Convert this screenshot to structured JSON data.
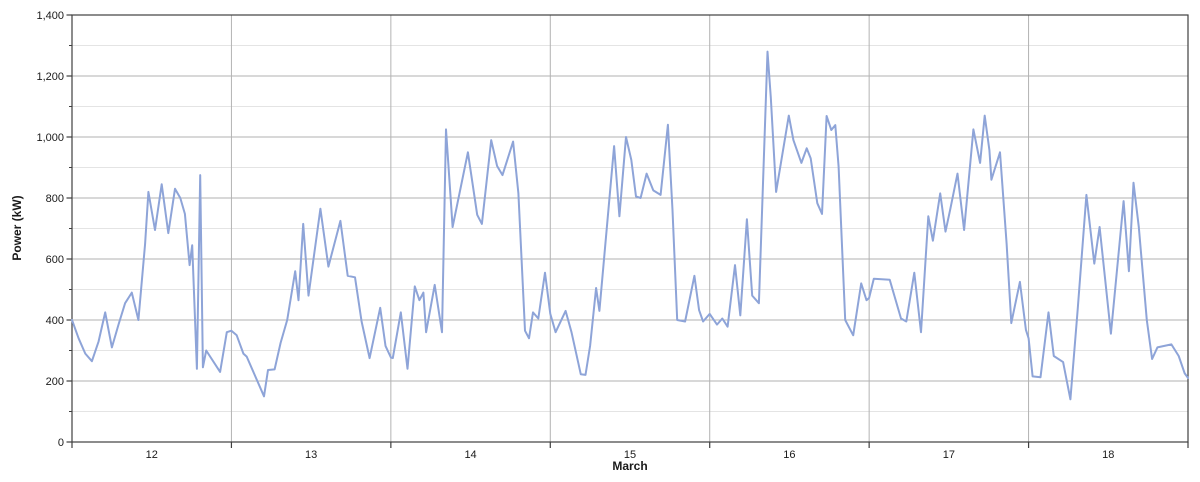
{
  "chart_data": {
    "type": "line",
    "xlabel": "March",
    "ylabel": "Power (kW)",
    "x_axis": {
      "description": "days of March, boundaries ticked at each midnight",
      "range_hours": [
        0,
        168
      ],
      "day_boundary_step_hours": 24,
      "tick_labels": [
        "12",
        "13",
        "14",
        "15",
        "16",
        "17",
        "18"
      ]
    },
    "y_axis": {
      "lim": [
        0,
        1400
      ],
      "major_step": 200,
      "minor_step": 100,
      "tick_values": [
        0,
        200,
        400,
        600,
        800,
        1000,
        1200,
        1400
      ],
      "tick_labels": [
        "0",
        "200",
        "400",
        "600",
        "800",
        "1,000",
        "1,200",
        "1,400"
      ]
    },
    "grid": {
      "major": true,
      "minor_horizontal": true,
      "vertical_day_lines": true
    },
    "series": [
      {
        "name": "Power (kW)",
        "color": "#8EA4D8",
        "points_hours_kw": [
          [
            0,
            400
          ],
          [
            1,
            340
          ],
          [
            2,
            290
          ],
          [
            3,
            265
          ],
          [
            4,
            330
          ],
          [
            5,
            425
          ],
          [
            6,
            310
          ],
          [
            7,
            385
          ],
          [
            8,
            455
          ],
          [
            9,
            490
          ],
          [
            10,
            400
          ],
          [
            11,
            650
          ],
          [
            11.5,
            820
          ],
          [
            12.5,
            695
          ],
          [
            13.5,
            845
          ],
          [
            14.5,
            685
          ],
          [
            15.5,
            830
          ],
          [
            16.3,
            800
          ],
          [
            17,
            748
          ],
          [
            17.7,
            580
          ],
          [
            18.1,
            645
          ],
          [
            18.8,
            240
          ],
          [
            19.3,
            875
          ],
          [
            19.7,
            245
          ],
          [
            20.2,
            300
          ],
          [
            22.3,
            230
          ],
          [
            23.3,
            360
          ],
          [
            24,
            365
          ],
          [
            24.8,
            350
          ],
          [
            25.8,
            290
          ],
          [
            26.3,
            280
          ],
          [
            28.9,
            150
          ],
          [
            29.5,
            236
          ],
          [
            30.5,
            238
          ],
          [
            31.4,
            325
          ],
          [
            32.4,
            400
          ],
          [
            33.6,
            560
          ],
          [
            34.1,
            465
          ],
          [
            34.8,
            715
          ],
          [
            35.6,
            480
          ],
          [
            37.4,
            765
          ],
          [
            38.6,
            575
          ],
          [
            40.4,
            725
          ],
          [
            41.5,
            545
          ],
          [
            42.6,
            540
          ],
          [
            43.6,
            395
          ],
          [
            44.8,
            275
          ],
          [
            46.4,
            440
          ],
          [
            47.2,
            315
          ],
          [
            48,
            277
          ],
          [
            48.3,
            275
          ],
          [
            49.5,
            425
          ],
          [
            50.5,
            240
          ],
          [
            51.6,
            510
          ],
          [
            52.3,
            465
          ],
          [
            52.9,
            490
          ],
          [
            53.3,
            360
          ],
          [
            54.6,
            515
          ],
          [
            55.7,
            360
          ],
          [
            56.3,
            1025
          ],
          [
            57.3,
            705
          ],
          [
            59.6,
            950
          ],
          [
            61,
            745
          ],
          [
            61.7,
            715
          ],
          [
            63.1,
            990
          ],
          [
            64,
            905
          ],
          [
            64.8,
            875
          ],
          [
            66.4,
            985
          ],
          [
            67.2,
            815
          ],
          [
            68.2,
            365
          ],
          [
            68.8,
            340
          ],
          [
            69.4,
            425
          ],
          [
            70.2,
            405
          ],
          [
            71.2,
            555
          ],
          [
            72,
            420
          ],
          [
            72.8,
            360
          ],
          [
            74.3,
            430
          ],
          [
            75.2,
            360
          ],
          [
            76.6,
            222
          ],
          [
            77.3,
            220
          ],
          [
            78,
            315
          ],
          [
            78.9,
            505
          ],
          [
            79.4,
            430
          ],
          [
            81.6,
            970
          ],
          [
            82.4,
            740
          ],
          [
            83.4,
            1000
          ],
          [
            84.2,
            925
          ],
          [
            84.9,
            805
          ],
          [
            85.6,
            800
          ],
          [
            86.5,
            880
          ],
          [
            87.5,
            825
          ],
          [
            88.6,
            810
          ],
          [
            89.7,
            1040
          ],
          [
            90.4,
            760
          ],
          [
            91.1,
            400
          ],
          [
            92.3,
            395
          ],
          [
            93.7,
            545
          ],
          [
            94.4,
            432
          ],
          [
            95,
            395
          ],
          [
            96,
            420
          ],
          [
            97.1,
            385
          ],
          [
            97.9,
            405
          ],
          [
            98.7,
            378
          ],
          [
            99.8,
            580
          ],
          [
            100.6,
            415
          ],
          [
            101.6,
            730
          ],
          [
            102.4,
            480
          ],
          [
            103.4,
            455
          ],
          [
            104.7,
            1280
          ],
          [
            105.2,
            1130
          ],
          [
            106,
            820
          ],
          [
            107.9,
            1070
          ],
          [
            108.6,
            990
          ],
          [
            109.8,
            915
          ],
          [
            110.6,
            963
          ],
          [
            111.2,
            930
          ],
          [
            112.2,
            783
          ],
          [
            112.9,
            748
          ],
          [
            113.6,
            1069
          ],
          [
            114.3,
            1023
          ],
          [
            114.9,
            1039
          ],
          [
            115.4,
            903
          ],
          [
            116.4,
            400
          ],
          [
            117.6,
            350
          ],
          [
            118.8,
            520
          ],
          [
            119.6,
            465
          ],
          [
            120,
            472
          ],
          [
            120.7,
            535
          ],
          [
            123.1,
            532
          ],
          [
            124.8,
            405
          ],
          [
            125.6,
            395
          ],
          [
            126.8,
            555
          ],
          [
            127.8,
            360
          ],
          [
            128.9,
            740
          ],
          [
            129.6,
            660
          ],
          [
            130.7,
            815
          ],
          [
            131.5,
            690
          ],
          [
            132.2,
            762
          ],
          [
            133.3,
            880
          ],
          [
            134.3,
            695
          ],
          [
            135.7,
            1025
          ],
          [
            136.7,
            915
          ],
          [
            137.4,
            1070
          ],
          [
            138.1,
            957
          ],
          [
            138.4,
            860
          ],
          [
            139.7,
            950
          ],
          [
            140.7,
            651
          ],
          [
            141.4,
            390
          ],
          [
            142.7,
            525
          ],
          [
            143.6,
            368
          ],
          [
            144,
            340
          ],
          [
            144.6,
            215
          ],
          [
            145.8,
            212
          ],
          [
            147,
            425
          ],
          [
            147.8,
            282
          ],
          [
            149.2,
            262
          ],
          [
            150.3,
            140
          ],
          [
            151.4,
            435
          ],
          [
            152.7,
            810
          ],
          [
            153.9,
            585
          ],
          [
            154.7,
            705
          ],
          [
            156.4,
            355
          ],
          [
            158.3,
            790
          ],
          [
            159.1,
            560
          ],
          [
            159.8,
            850
          ],
          [
            160.6,
            705
          ],
          [
            161.8,
            400
          ],
          [
            162.6,
            272
          ],
          [
            163.4,
            310
          ],
          [
            165.5,
            320
          ],
          [
            166.6,
            282
          ],
          [
            167.5,
            225
          ],
          [
            168,
            210
          ]
        ]
      }
    ]
  },
  "styles": {
    "background": "#ffffff",
    "plot_border": "#3f3f3f",
    "major_grid": "#b2b2b2",
    "minor_grid": "#e4e4e4",
    "tick_color": "#3f3f3f",
    "text_color": "#1a1a1a"
  }
}
